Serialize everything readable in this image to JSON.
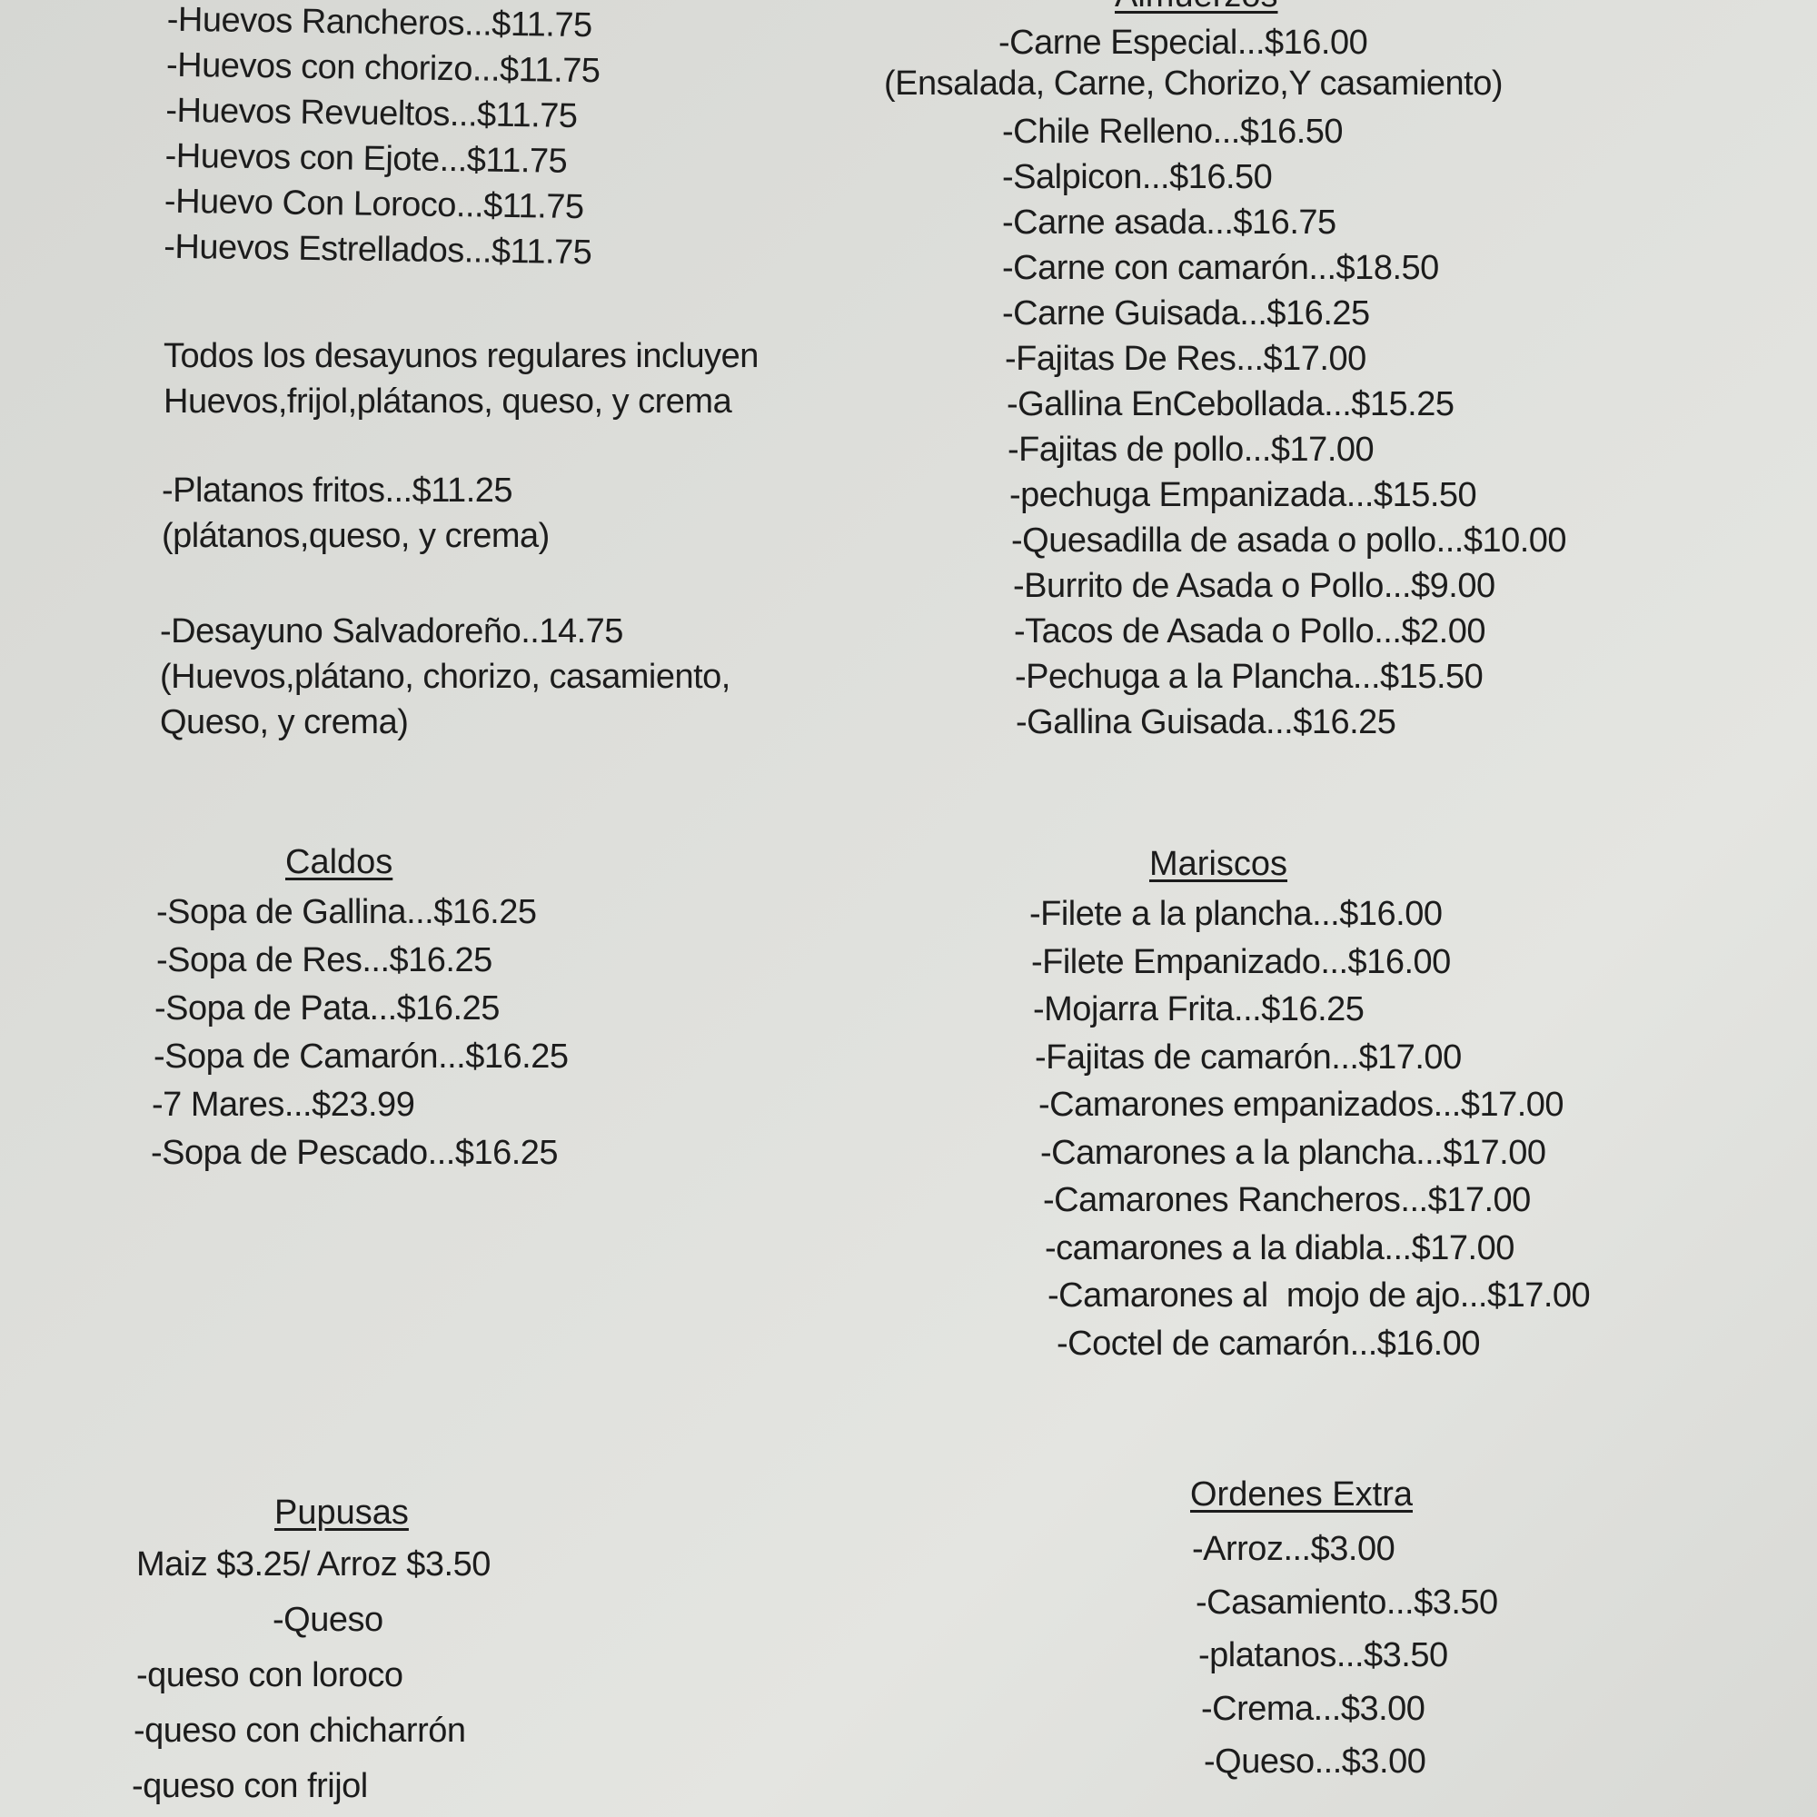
{
  "desayunos": {
    "items": [
      "-Huevos Rancheros...$11.75",
      "-Huevos con chorizo...$11.75",
      "-Huevos Revueltos...$11.75",
      "-Huevos con Ejote...$11.75",
      "-Huevo Con Loroco...$11.75",
      "-Huevos Estrellados...$11.75"
    ],
    "note": [
      "Todos los desayunos regulares incluyen",
      "Huevos,frijol,plátanos, queso, y crema"
    ],
    "platanos": [
      "-Platanos fritos...$11.25",
      "(plátanos,queso, y crema)"
    ],
    "salvadoreno": [
      "-Desayuno Salvadoreño..14.75",
      "(Huevos,plátano, chorizo, casamiento,",
      "Queso, y crema)"
    ]
  },
  "almuerzos": {
    "title": "Almuerzos",
    "first": "-Carne Especial...$16.00",
    "first_note": "(Ensalada, Carne, Chorizo,Y casamiento)",
    "items": [
      "-Chile Relleno...$16.50",
      "-Salpicon...$16.50",
      "-Carne asada...$16.75",
      "-Carne con camarón...$18.50",
      "-Carne Guisada...$16.25",
      "-Fajitas De Res...$17.00",
      "-Gallina EnCebollada...$15.25",
      "-Fajitas de pollo...$17.00",
      "-pechuga Empanizada...$15.50",
      "-Quesadilla de asada o pollo...$10.00",
      "-Burrito de Asada o Pollo...$9.00",
      "-Tacos de Asada o Pollo...$2.00",
      "-Pechuga a la Plancha...$15.50",
      "-Gallina Guisada...$16.25"
    ]
  },
  "caldos": {
    "title": "Caldos",
    "items": [
      "-Sopa de Gallina...$16.25",
      "-Sopa de Res...$16.25",
      "-Sopa de Pata...$16.25",
      "-Sopa de Camarón...$16.25",
      "-7 Mares...$23.99",
      "-Sopa de Pescado...$16.25"
    ]
  },
  "mariscos": {
    "title": "Mariscos",
    "items": [
      "-Filete a la plancha...$16.00",
      "-Filete Empanizado...$16.00",
      "-Mojarra Frita...$16.25",
      "-Fajitas de camarón...$17.00",
      "-Camarones empanizados...$17.00",
      "-Camarones a la plancha...$17.00",
      "-Camarones Rancheros...$17.00",
      "-camarones a la diabla...$17.00",
      "-Camarones al  mojo de ajo...$17.00",
      "-Coctel de camarón...$16.00"
    ]
  },
  "pupusas": {
    "title": "Pupusas",
    "prices": "Maiz $3.25/ Arroz $3.50",
    "first": "-Queso",
    "items": [
      "-queso con loroco",
      "-queso con chicharrón",
      "-queso con frijol"
    ]
  },
  "extras": {
    "title": "Ordenes Extra",
    "items": [
      "-Arroz...$3.00",
      "-Casamiento...$3.50",
      "-platanos...$3.50",
      "-Crema...$3.00",
      "-Queso...$3.00"
    ]
  }
}
